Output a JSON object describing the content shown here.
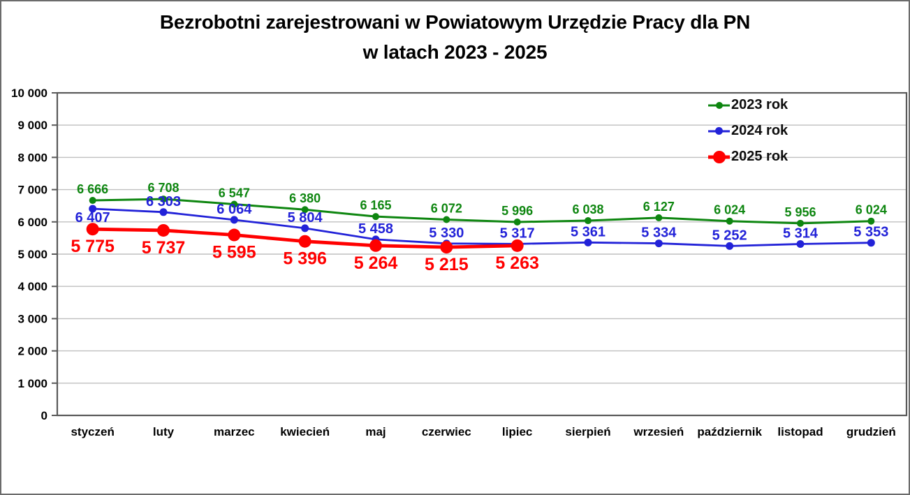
{
  "title": {
    "line1": "Bezrobotni zarejestrowani w Powiatowym Urzędzie Pracy dla PN",
    "line2": "w latach 2023 - 2025"
  },
  "colors": {
    "series_2023": "#0e8610",
    "series_2024": "#2222d8",
    "series_2025": "#ff0000",
    "grid": "#bfbfbf",
    "axis": "#595959",
    "text": "#000000"
  },
  "chart_data": {
    "type": "line",
    "title": "Bezrobotni zarejestrowani w Powiatowym Urzędzie Pracy dla PN w latach 2023 - 2025",
    "categories": [
      "styczeń",
      "luty",
      "marzec",
      "kwiecień",
      "maj",
      "czerwiec",
      "lipiec",
      "sierpień",
      "wrzesień",
      "październik",
      "listopad",
      "grudzień"
    ],
    "series": [
      {
        "name": "2023 rok",
        "color": "#0e8610",
        "values": [
          6666,
          6708,
          6547,
          6380,
          6165,
          6072,
          5996,
          6038,
          6127,
          6024,
          5956,
          6024
        ]
      },
      {
        "name": "2024 rok",
        "color": "#2222d8",
        "values": [
          6407,
          6303,
          6064,
          5804,
          5458,
          5330,
          5317,
          5361,
          5334,
          5252,
          5314,
          5353
        ]
      },
      {
        "name": "2025 rok",
        "color": "#ff0000",
        "values": [
          5775,
          5737,
          5595,
          5396,
          5264,
          5215,
          5263
        ]
      }
    ],
    "xlabel": "",
    "ylabel": "",
    "ylim": [
      0,
      10000
    ],
    "ytick_step": 1000,
    "ytick_labels": [
      "0",
      "1 000",
      "2 000",
      "3 000",
      "4 000",
      "5 000",
      "6 000",
      "7 000",
      "8 000",
      "9 000",
      "10 000"
    ],
    "grid": true,
    "data_labels": true,
    "legend_position": "top-right"
  }
}
